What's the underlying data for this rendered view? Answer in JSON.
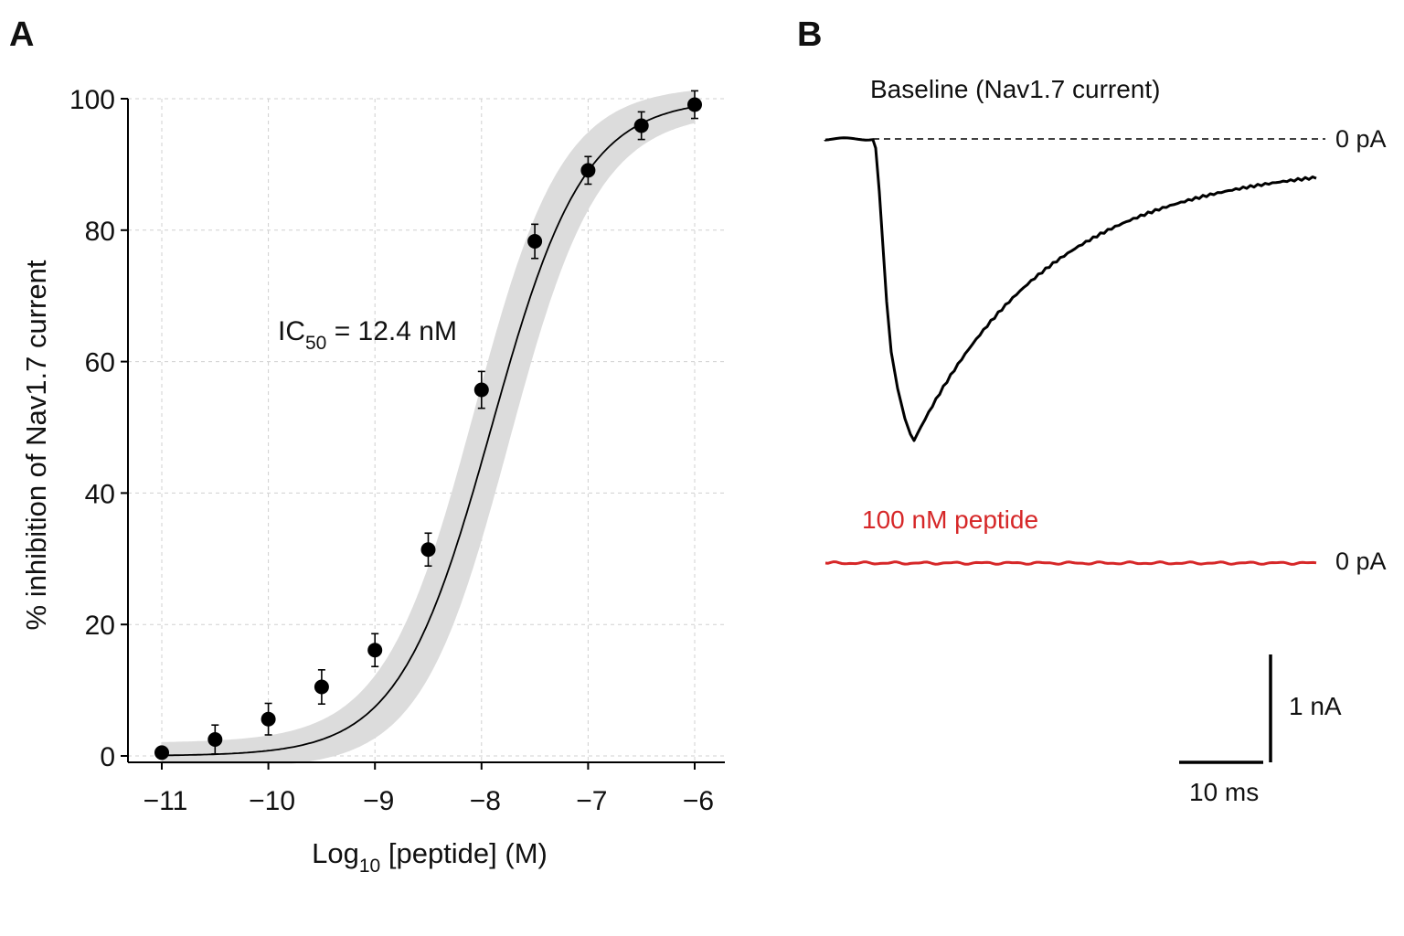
{
  "chart_data": [
    {
      "panel": "A",
      "type": "scatter",
      "xlabel": "Log",
      "xlabel_sub": "10",
      "xlabel_tail": " [peptide] (M)",
      "ylabel": "% inhibition of Nav1.7 current",
      "xlim": [
        -11.3,
        -5.7
      ],
      "ylim": [
        0,
        100
      ],
      "xticks": [
        -11,
        -10,
        -9,
        -8,
        -7,
        -6
      ],
      "xtick_labels": [
        "−11",
        "−10",
        "−9",
        "−8",
        "−7",
        "−6"
      ],
      "yticks": [
        0,
        20,
        40,
        60,
        80,
        100
      ],
      "ytick_labels": [
        "0",
        "20",
        "40",
        "60",
        "80",
        "100"
      ],
      "grid": true,
      "annotation": {
        "prefix": "IC",
        "sub": "50",
        "suffix": " = 12.4 nM"
      },
      "fit": {
        "ic50_log": -7.907,
        "hill": 1.0,
        "bottom": 0,
        "top": 100
      },
      "series": [
        {
          "x": [
            -11.0,
            -10.5,
            -10.0,
            -9.5,
            -9.0,
            -8.5,
            -8.0,
            -7.5,
            -7.0,
            -6.5,
            -6.0
          ],
          "y": [
            0.5,
            2.5,
            5.6,
            10.5,
            16.1,
            31.4,
            55.7,
            78.3,
            89.1,
            95.9,
            99.1
          ],
          "err": [
            0.8,
            2.2,
            2.4,
            2.6,
            2.5,
            2.5,
            2.8,
            2.6,
            2.1,
            2.1,
            2.1
          ]
        }
      ],
      "colors": {
        "points": "#000000",
        "fit_line": "#000000",
        "band": "#dcdcdc",
        "grid": "#d0d0d0"
      }
    },
    {
      "panel": "B",
      "type": "line",
      "series": [
        {
          "name": "Baseline (Nav1.7 current)",
          "color": "#000000"
        },
        {
          "name": "100 nM peptide",
          "color": "#d62728"
        }
      ],
      "zero_label": "0 pA",
      "scale_bar": {
        "current": "1 nA",
        "time": "10 ms"
      }
    }
  ],
  "panels": {
    "a_label": "A",
    "b_label": "B"
  }
}
